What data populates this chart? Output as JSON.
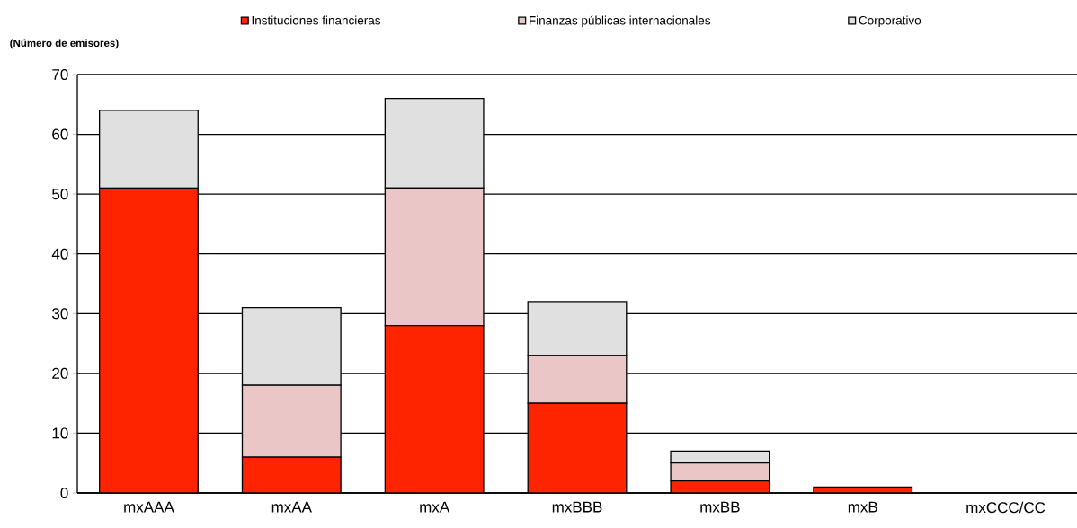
{
  "chart_data": {
    "type": "bar",
    "stacked": true,
    "ylabel": "(Número de emisores)",
    "categories": [
      "mxAAA",
      "mxAA",
      "mxA",
      "mxBBB",
      "mxBB",
      "mxB",
      "mxCCC/CC"
    ],
    "series": [
      {
        "name": "Instituciones financieras",
        "color": "#ff2400",
        "values": [
          51,
          6,
          28,
          15,
          2,
          1,
          0
        ]
      },
      {
        "name": "Finanzas públicas internacionales",
        "color": "#eac6c6",
        "values": [
          0,
          12,
          23,
          8,
          3,
          0,
          0
        ]
      },
      {
        "name": "Corporativo",
        "color": "#e0e0e0",
        "values": [
          13,
          13,
          15,
          9,
          2,
          0,
          0
        ]
      }
    ],
    "ylim": [
      0,
      70
    ],
    "yticks": [
      0,
      10,
      20,
      30,
      40,
      50,
      60,
      70
    ],
    "grid": "y",
    "legend": "top"
  }
}
